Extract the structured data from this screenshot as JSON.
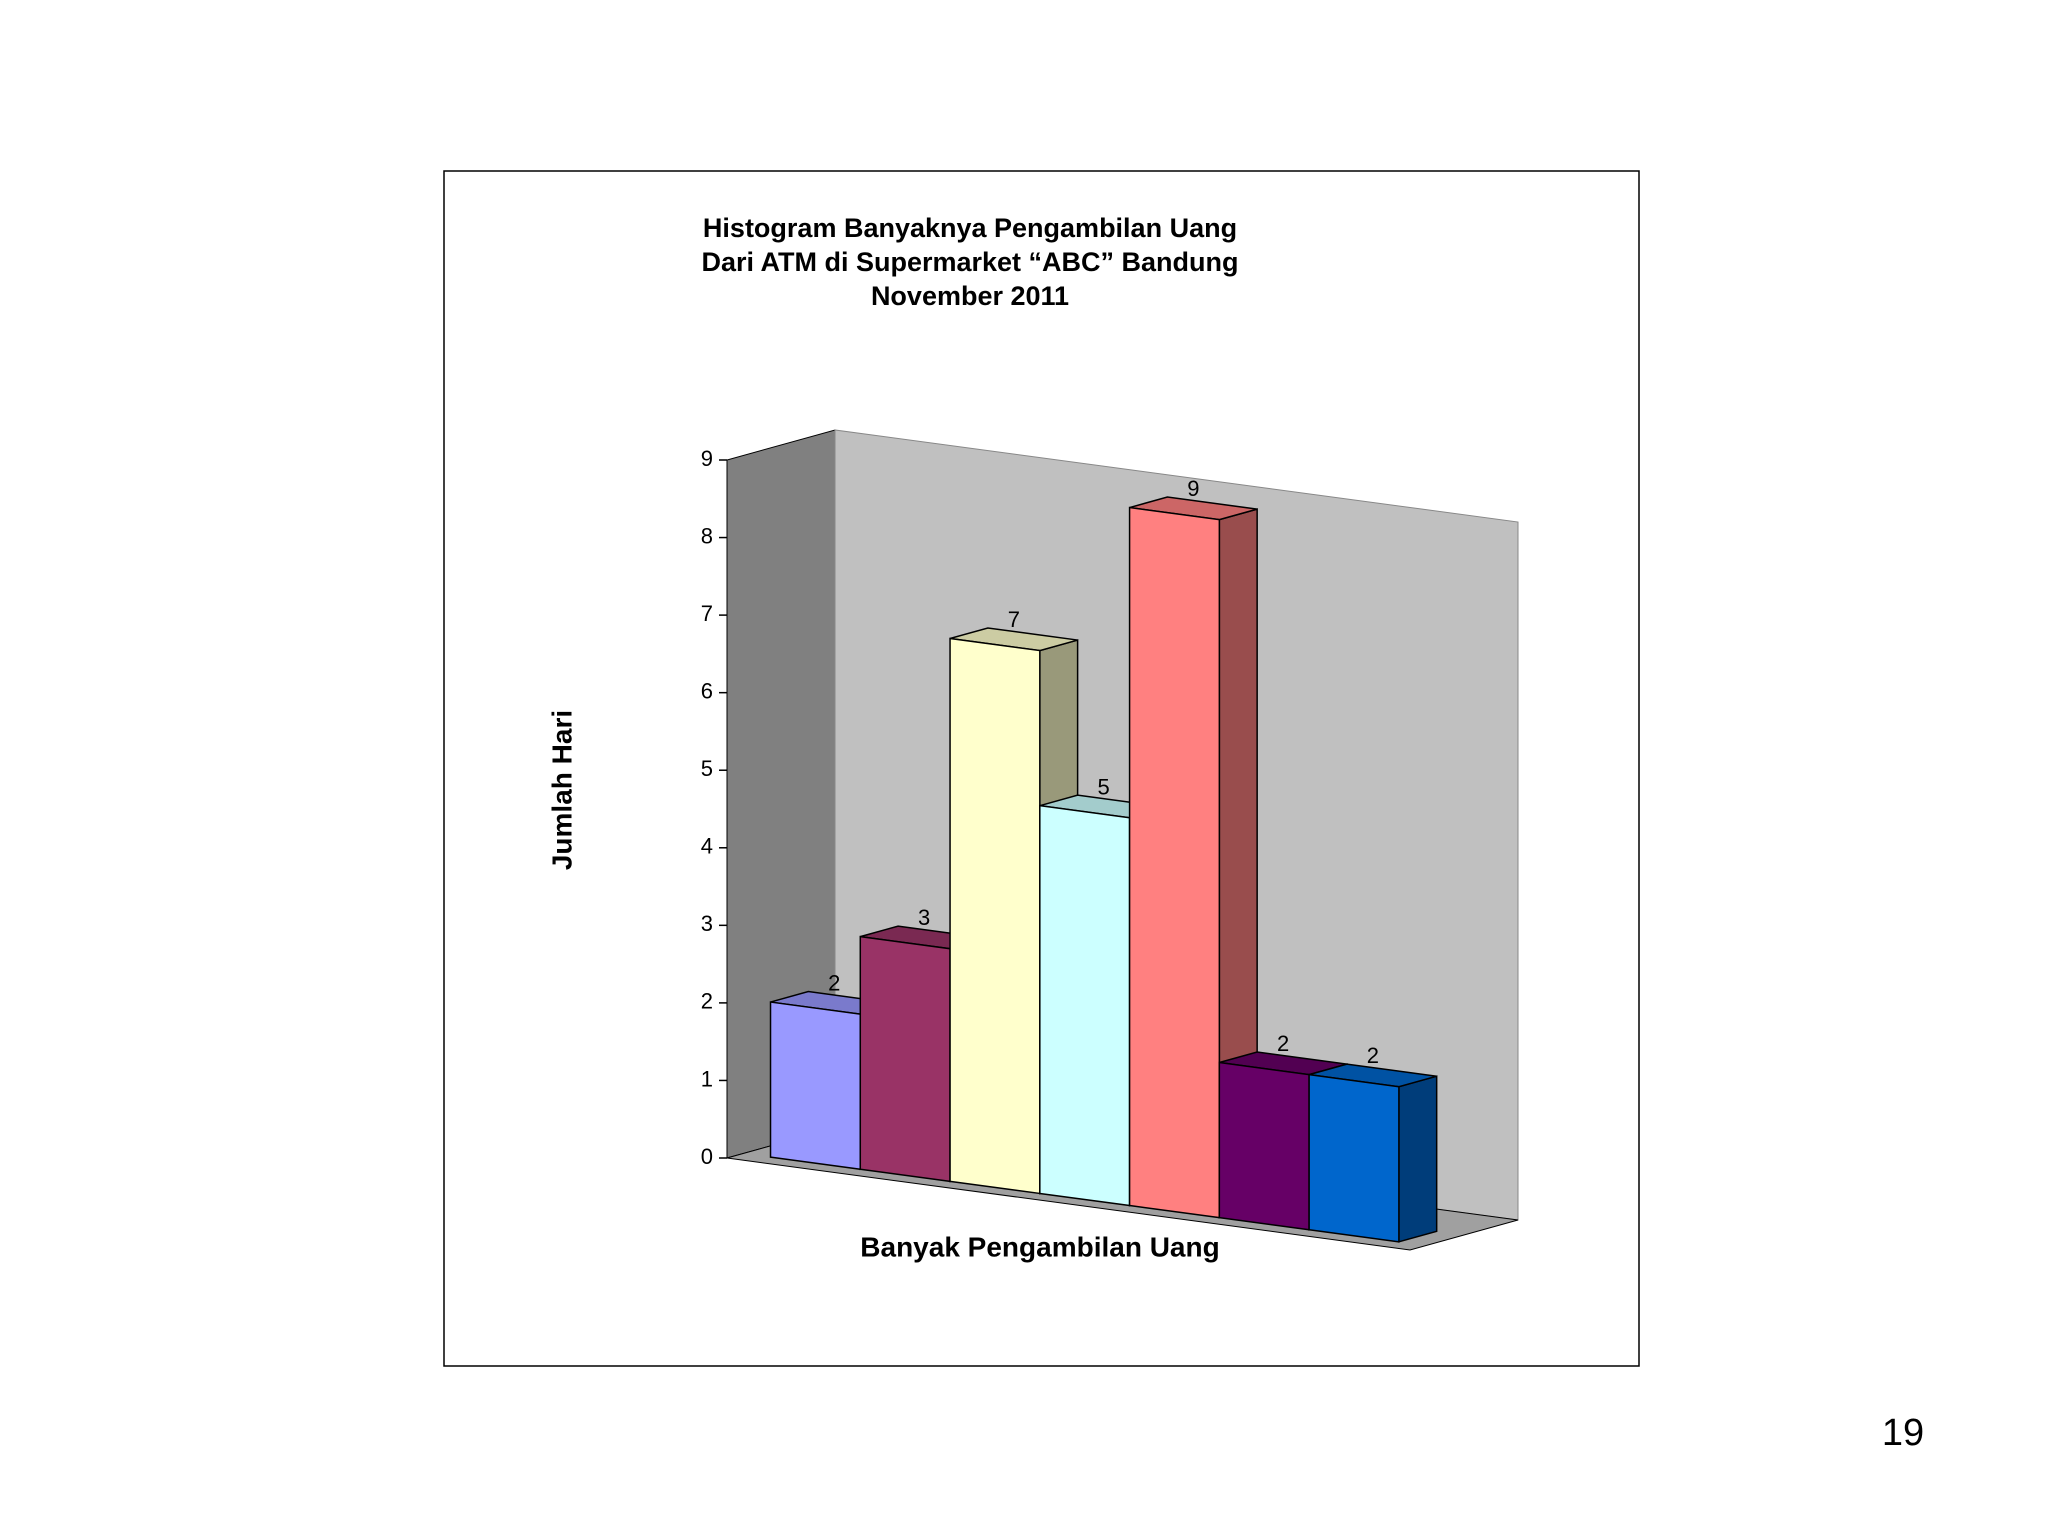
{
  "chart_data": {
    "type": "bar3d",
    "title": [
      "Histogram  Banyaknya  Pengambilan  Uang",
      "Dari ATM di Supermarket “ABC”  Bandung",
      "November 2011"
    ],
    "xlabel": "Banyak Pengambilan Uang",
    "ylabel": "Jumlah Hari",
    "values": [
      2,
      3,
      7,
      5,
      9,
      2,
      2
    ],
    "colors": [
      "#9999ff",
      "#993366",
      "#ffffcc",
      "#ccffff",
      "#ff8080",
      "#660066",
      "#0066cc"
    ],
    "ylim": [
      0,
      9
    ],
    "yticks": [
      0,
      1,
      2,
      3,
      4,
      5,
      6,
      7,
      8,
      9
    ]
  },
  "page_number": "19"
}
